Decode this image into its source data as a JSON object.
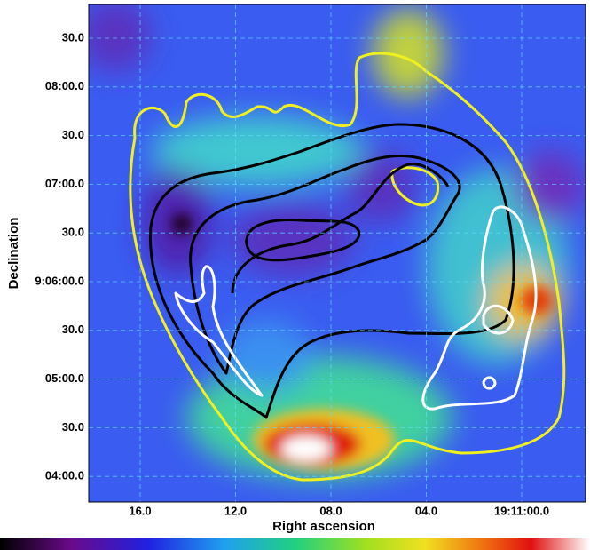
{
  "axes": {
    "x_label": "Right ascension",
    "y_label": "Declination",
    "x_ticks": [
      "16.0",
      "12.0",
      "08.0",
      "04.0",
      "19:11:00.0"
    ],
    "y_ticks": [
      "30.0",
      "08:00.0",
      "30.0",
      "07:00.0",
      "30.0",
      "9:06:00.0",
      "30.0",
      "05:00.0",
      "30.0",
      "04:00.0"
    ]
  }
}
